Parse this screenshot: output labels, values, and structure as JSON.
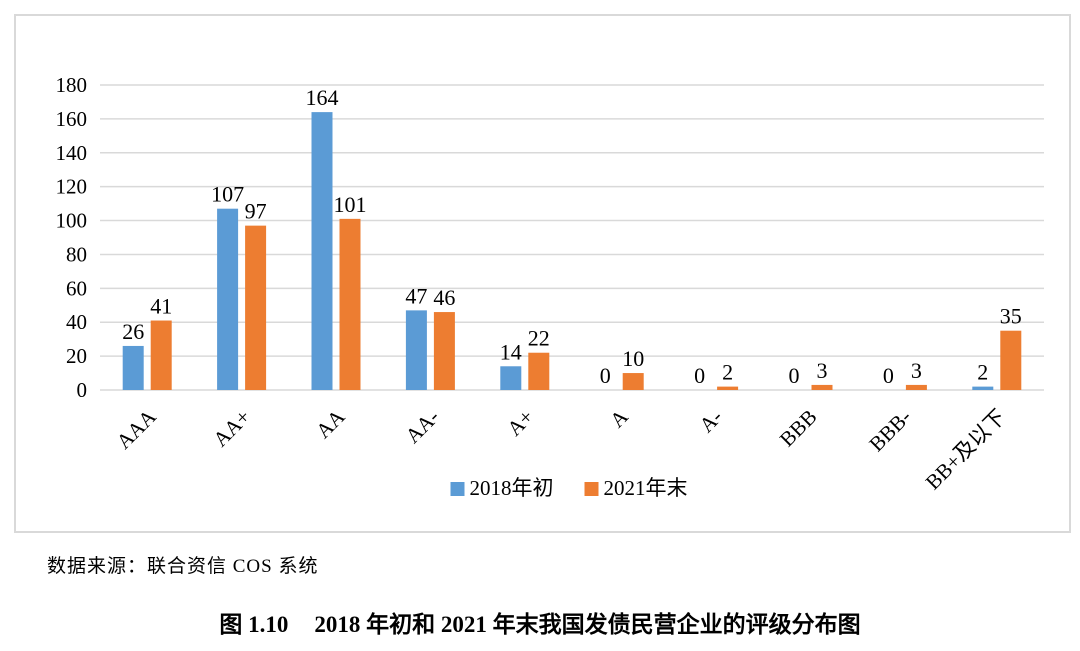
{
  "chart_data": {
    "type": "bar",
    "title": "",
    "categories": [
      "AAA",
      "AA+",
      "AA",
      "AA-",
      "A+",
      "A",
      "A-",
      "BBB",
      "BBB-",
      "BB+及以下"
    ],
    "series": [
      {
        "name": "2018年初",
        "color": "#5B9BD5",
        "values": [
          26,
          107,
          164,
          47,
          14,
          0,
          0,
          0,
          0,
          2
        ]
      },
      {
        "name": "2021年末",
        "color": "#ED7D31",
        "values": [
          41,
          97,
          101,
          46,
          22,
          10,
          2,
          3,
          3,
          35
        ]
      }
    ],
    "ylim": [
      0,
      180
    ],
    "yticks": [
      0,
      20,
      40,
      60,
      80,
      100,
      120,
      140,
      160,
      180
    ],
    "grid": true,
    "gridline_color": "#D9D9D9",
    "legend_position": "bottom",
    "value_labels": true,
    "text_color": "#000000"
  },
  "footer": {
    "source_note": "数据来源：联合资信 COS 系统"
  },
  "caption": {
    "label": "图 1.10",
    "text": "2018 年初和 2021 年末我国发债民营企业的评级分布图"
  }
}
